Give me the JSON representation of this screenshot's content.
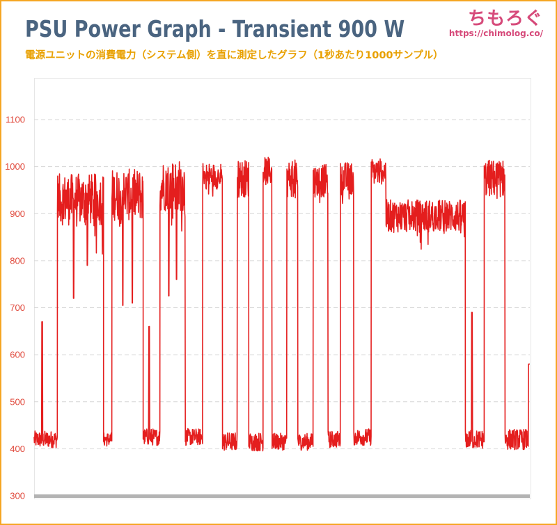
{
  "header": {
    "title": "PSU Power Graph - Transient 900 W",
    "subtitle": "電源ユニットの消費電力（システム側）を直に測定したグラフ（1秒あたり1000サンプル）",
    "logo_text": "ちもろぐ",
    "logo_url": "https://chimolog.co/"
  },
  "colors": {
    "accent_title": "#4a6480",
    "subtitle": "#e8a000",
    "line": "#e41e1e",
    "tick": "#e0473a",
    "frame": "#f5a623",
    "baseline": "#b3b3b3",
    "grid": "#d6d6d6"
  },
  "chart_data": {
    "type": "line",
    "title": "PSU Power Graph - Transient 900 W",
    "subtitle": "電源ユニットの消費電力（システム側）を直に測定したグラフ（1秒あたり1000サンプル）",
    "xlabel": "",
    "ylabel": "",
    "ylim": [
      300,
      1150
    ],
    "yticks": [
      "300",
      "400",
      "500",
      "600",
      "700",
      "800",
      "900",
      "1000",
      "1100"
    ],
    "grid": "horizontal-dashed",
    "legend": "none",
    "x_range": [
      0,
      1000
    ],
    "segments": [
      {
        "start": 0,
        "end": 47,
        "level": 420,
        "noise": 18,
        "spike": 670
      },
      {
        "start": 47,
        "end": 140,
        "level": 930,
        "noise": 55,
        "dips": [
          720,
          790
        ]
      },
      {
        "start": 140,
        "end": 157,
        "level": 420,
        "noise": 15
      },
      {
        "start": 157,
        "end": 220,
        "level": 940,
        "noise": 55,
        "dips": [
          705,
          710
        ]
      },
      {
        "start": 220,
        "end": 254,
        "level": 425,
        "noise": 18,
        "spike": 660
      },
      {
        "start": 254,
        "end": 305,
        "level": 960,
        "noise": 55,
        "dips": [
          725,
          760
        ]
      },
      {
        "start": 305,
        "end": 340,
        "level": 425,
        "noise": 18
      },
      {
        "start": 340,
        "end": 380,
        "level": 980,
        "noise": 28
      },
      {
        "start": 380,
        "end": 410,
        "level": 415,
        "noise": 20
      },
      {
        "start": 410,
        "end": 433,
        "level": 975,
        "noise": 40
      },
      {
        "start": 433,
        "end": 462,
        "level": 415,
        "noise": 20
      },
      {
        "start": 462,
        "end": 480,
        "level": 990,
        "noise": 30
      },
      {
        "start": 480,
        "end": 510,
        "level": 415,
        "noise": 18
      },
      {
        "start": 510,
        "end": 532,
        "level": 975,
        "noise": 40
      },
      {
        "start": 532,
        "end": 563,
        "level": 415,
        "noise": 18
      },
      {
        "start": 563,
        "end": 593,
        "level": 970,
        "noise": 35
      },
      {
        "start": 593,
        "end": 618,
        "level": 420,
        "noise": 18
      },
      {
        "start": 618,
        "end": 645,
        "level": 975,
        "noise": 35
      },
      {
        "start": 645,
        "end": 680,
        "level": 425,
        "noise": 18
      },
      {
        "start": 680,
        "end": 710,
        "level": 990,
        "noise": 28
      },
      {
        "start": 710,
        "end": 870,
        "level": 895,
        "noise": 35
      },
      {
        "start": 870,
        "end": 908,
        "level": 420,
        "noise": 20,
        "spike": 690
      },
      {
        "start": 908,
        "end": 950,
        "level": 975,
        "noise": 40
      },
      {
        "start": 950,
        "end": 1000,
        "level": 420,
        "noise": 22,
        "end_value": 580
      }
    ]
  }
}
